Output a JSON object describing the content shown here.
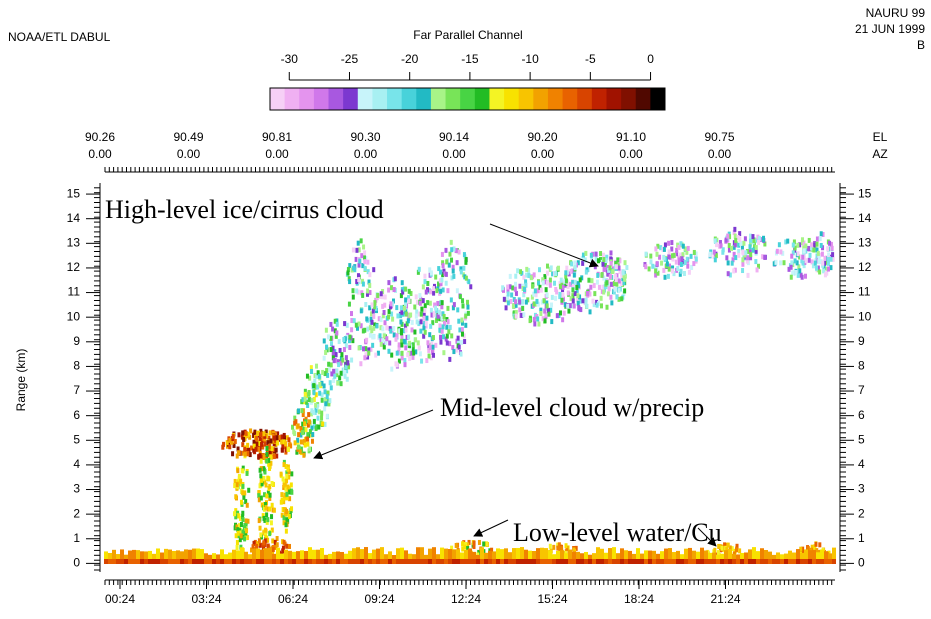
{
  "chart_data": {
    "type": "heatmap",
    "instrument": "NOAA/ETL DABUL",
    "site": "NAURU 99",
    "date": "21 JUN 1999",
    "panel": "B",
    "colorbar": {
      "label": "Far Parallel Channel",
      "ticks": [
        -30,
        -25,
        -20,
        -15,
        -10,
        -5,
        0
      ],
      "lim": [
        -31.6,
        1.2
      ],
      "colors": [
        "#f6d0f6",
        "#f0b0f2",
        "#e494ee",
        "#d078ea",
        "#a858e0",
        "#7c38d0",
        "#c8f4fa",
        "#a8f0f2",
        "#78e4ea",
        "#48d2da",
        "#22bac4",
        "#a8f488",
        "#78e458",
        "#48d444",
        "#22bc24",
        "#f4f424",
        "#f8e200",
        "#f8c400",
        "#f2a200",
        "#f08200",
        "#e86200",
        "#d84400",
        "#c02200",
        "#a01200",
        "#801000",
        "#500800",
        "#000000"
      ]
    },
    "top_axis": {
      "el_label": "EL",
      "az_label": "AZ",
      "el": [
        "90.26",
        "90.49",
        "90.81",
        "90.30",
        "90.14",
        "90.20",
        "91.10",
        "90.75"
      ],
      "az": [
        "0.00",
        "0.00",
        "0.00",
        "0.00",
        "0.00",
        "0.00",
        "0.00",
        "0.00"
      ]
    },
    "x_tick_labels": [
      "00:24",
      "03:24",
      "06:24",
      "09:24",
      "12:24",
      "15:24",
      "18:24",
      "21:24"
    ],
    "ylabel": "Range (km)",
    "ylim": [
      -0.35,
      15.45
    ],
    "yticks": [
      0,
      1,
      2,
      3,
      4,
      5,
      6,
      7,
      8,
      9,
      10,
      11,
      12,
      13,
      14,
      15
    ],
    "annotations": [
      "High-level ice/cirrus cloud",
      "Mid-level cloud w/precip",
      "Low-level water/Cu"
    ]
  }
}
